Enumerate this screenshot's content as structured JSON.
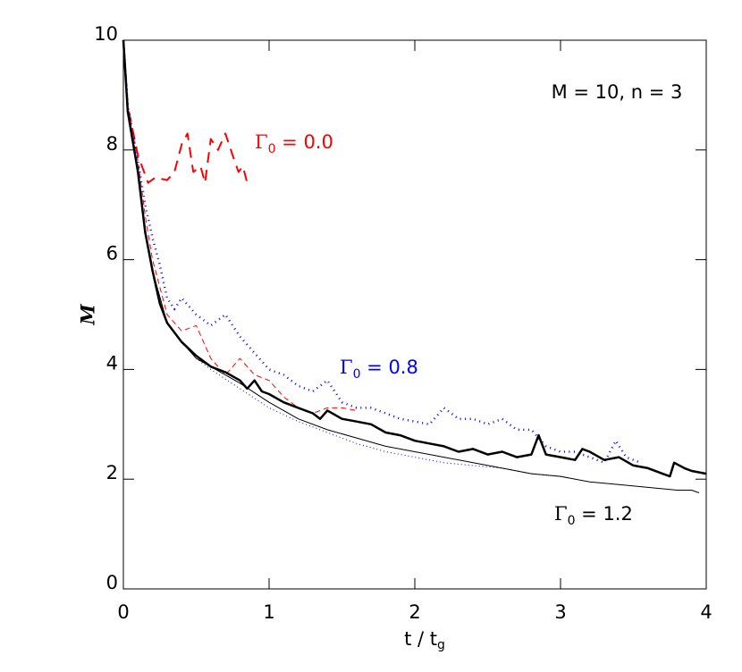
{
  "chart_data": {
    "type": "line",
    "x_label": {
      "text": "t / t",
      "sub": "g"
    },
    "y_label": "M",
    "annotation": "M = 10, n = 3",
    "labels": [
      {
        "text": "Γ",
        "sub": "0",
        "rest": " = 0.0",
        "color": "#ff0000"
      },
      {
        "text": "Γ",
        "sub": "0",
        "rest": " = 0.8",
        "color": "#0000ff"
      },
      {
        "text": "Γ",
        "sub": "0",
        "rest": " = 1.2",
        "color": "#000000"
      }
    ],
    "xlim": [
      0,
      4
    ],
    "xticks": [
      0,
      1,
      2,
      3,
      4
    ],
    "ylim": [
      0,
      10
    ],
    "yticks": [
      0,
      2,
      4,
      6,
      8,
      10
    ],
    "series": [
      {
        "color": "#ff0000",
        "width": 2,
        "dash": "dash",
        "x": [
          0,
          0.03,
          0.1,
          0.17,
          0.22,
          0.3,
          0.35,
          0.4,
          0.44,
          0.48,
          0.53,
          0.56,
          0.6,
          0.65,
          0.7,
          0.75,
          0.79,
          0.82,
          0.85
        ],
        "values": [
          10,
          8.8,
          7.9,
          7.4,
          7.5,
          7.45,
          7.6,
          8.1,
          8.3,
          7.6,
          7.7,
          7.4,
          8.2,
          8.0,
          8.3,
          7.9,
          7.6,
          7.7,
          7.4
        ]
      },
      {
        "color": "#ff0000",
        "width": 1,
        "dash": "dash",
        "x": [
          0,
          0.03,
          0.1,
          0.15,
          0.2,
          0.25,
          0.3,
          0.4,
          0.5,
          0.6,
          0.7,
          0.8,
          0.9,
          1.0,
          1.1,
          1.2,
          1.3,
          1.4,
          1.5,
          1.6
        ],
        "values": [
          10,
          8.8,
          7.8,
          6.8,
          6.0,
          5.5,
          5.0,
          4.7,
          4.8,
          4.2,
          3.9,
          4.2,
          3.9,
          3.8,
          3.5,
          3.3,
          3.2,
          3.3,
          3.3,
          3.25
        ]
      },
      {
        "color": "#0000ff",
        "width": 2.5,
        "dash": "dot",
        "x": [
          0,
          0.03,
          0.1,
          0.15,
          0.2,
          0.25,
          0.3,
          0.35,
          0.4,
          0.5,
          0.6,
          0.7,
          0.8,
          0.9,
          1.0,
          1.1,
          1.2,
          1.3,
          1.4,
          1.5,
          1.6,
          1.7,
          1.8,
          1.9,
          2.0,
          2.1,
          2.2,
          2.3,
          2.4,
          2.5,
          2.6,
          2.7,
          2.8,
          2.9,
          3.0,
          3.1,
          3.2,
          3.3,
          3.38,
          3.45,
          3.55
        ],
        "values": [
          10,
          8.8,
          7.8,
          7.0,
          6.4,
          5.9,
          5.3,
          5.1,
          5.3,
          5.0,
          4.8,
          5.0,
          4.6,
          4.3,
          4.0,
          3.9,
          3.7,
          3.6,
          3.8,
          3.4,
          3.3,
          3.3,
          3.2,
          3.1,
          3.05,
          3.0,
          3.3,
          3.1,
          3.1,
          3.0,
          3.1,
          2.9,
          2.9,
          2.6,
          2.5,
          2.5,
          2.4,
          2.3,
          2.7,
          2.4,
          2.3
        ]
      },
      {
        "color": "#0000ff",
        "width": 1,
        "dash": "dot",
        "x": [
          0,
          0.03,
          0.1,
          0.15,
          0.2,
          0.3,
          0.4,
          0.5,
          0.6,
          0.8,
          1.0,
          1.2,
          1.4,
          1.6,
          1.8,
          2.0,
          2.2,
          2.4,
          2.6,
          2.8,
          3.0,
          3.1
        ],
        "values": [
          10,
          8.7,
          7.6,
          6.5,
          5.8,
          4.85,
          4.5,
          4.2,
          4.0,
          3.65,
          3.3,
          3.05,
          2.85,
          2.65,
          2.5,
          2.4,
          2.3,
          2.25,
          2.2,
          2.1,
          2.05,
          2.0
        ]
      },
      {
        "color": "#000000",
        "width": 2.5,
        "dash": "solid",
        "x": [
          0,
          0.03,
          0.1,
          0.15,
          0.2,
          0.25,
          0.3,
          0.4,
          0.5,
          0.6,
          0.7,
          0.8,
          0.85,
          0.9,
          0.95,
          1.0,
          1.1,
          1.2,
          1.3,
          1.35,
          1.4,
          1.5,
          1.6,
          1.7,
          1.8,
          1.9,
          2.0,
          2.1,
          2.2,
          2.3,
          2.4,
          2.5,
          2.6,
          2.7,
          2.8,
          2.85,
          2.9,
          3.0,
          3.1,
          3.15,
          3.2,
          3.3,
          3.4,
          3.5,
          3.6,
          3.7,
          3.75,
          3.78,
          3.85,
          3.9,
          4.0
        ],
        "values": [
          10,
          8.7,
          7.6,
          6.5,
          5.8,
          5.2,
          4.85,
          4.5,
          4.25,
          4.05,
          3.95,
          3.8,
          3.65,
          3.8,
          3.6,
          3.55,
          3.4,
          3.3,
          3.2,
          3.1,
          3.25,
          3.1,
          3.05,
          3.0,
          2.85,
          2.8,
          2.7,
          2.65,
          2.6,
          2.5,
          2.55,
          2.45,
          2.5,
          2.4,
          2.45,
          2.8,
          2.45,
          2.4,
          2.35,
          2.55,
          2.5,
          2.35,
          2.4,
          2.25,
          2.2,
          2.1,
          2.05,
          2.3,
          2.2,
          2.15,
          2.1
        ]
      },
      {
        "color": "#000000",
        "width": 1,
        "dash": "solid",
        "x": [
          0,
          0.03,
          0.1,
          0.15,
          0.2,
          0.3,
          0.4,
          0.5,
          0.6,
          0.8,
          1.0,
          1.2,
          1.4,
          1.6,
          1.8,
          2.0,
          2.2,
          2.4,
          2.6,
          2.8,
          3.0,
          3.2,
          3.4,
          3.6,
          3.8,
          3.9,
          3.95
        ],
        "values": [
          10,
          8.7,
          7.6,
          6.5,
          5.8,
          4.85,
          4.5,
          4.2,
          4.05,
          3.75,
          3.4,
          3.1,
          2.9,
          2.75,
          2.6,
          2.5,
          2.4,
          2.3,
          2.2,
          2.1,
          2.05,
          1.95,
          1.9,
          1.85,
          1.8,
          1.8,
          1.75
        ]
      }
    ]
  }
}
